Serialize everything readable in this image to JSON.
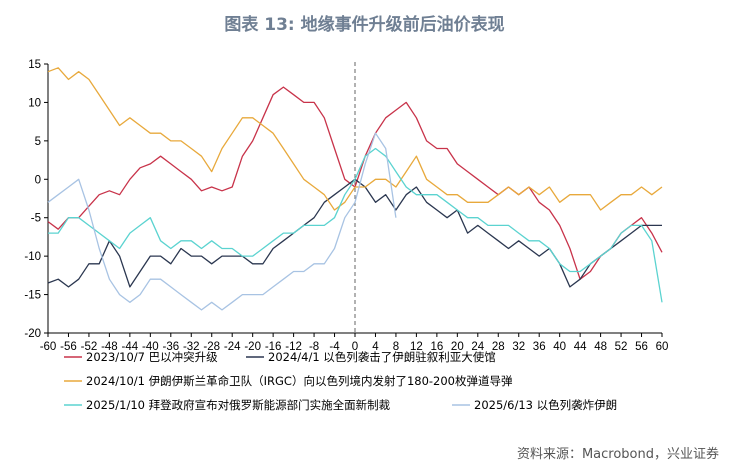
{
  "title": "图表 13: 地缘事件升级前后油价表现",
  "source": "资料来源：Macrobond，兴业证券",
  "chart_data": {
    "type": "line",
    "xlim": [
      -60,
      60
    ],
    "ylim": [
      -20,
      15
    ],
    "x_ticks": [
      -60,
      -56,
      -52,
      -48,
      -44,
      -40,
      -36,
      -32,
      -28,
      -24,
      -20,
      -16,
      -12,
      -8,
      -4,
      0,
      4,
      8,
      12,
      16,
      20,
      24,
      28,
      32,
      36,
      40,
      44,
      48,
      52,
      56,
      60
    ],
    "y_ticks": [
      15,
      10,
      5,
      0,
      -5,
      -10,
      -15,
      -20
    ],
    "event_line_x": 0,
    "series": [
      {
        "name": "2023/10/7 巴以冲突升级",
        "color": "#c8334a",
        "points": [
          [
            -60,
            -5.5
          ],
          [
            -58,
            -6.5
          ],
          [
            -56,
            -5
          ],
          [
            -54,
            -5
          ],
          [
            -52,
            -3.5
          ],
          [
            -50,
            -2
          ],
          [
            -48,
            -1.5
          ],
          [
            -46,
            -2
          ],
          [
            -44,
            0
          ],
          [
            -42,
            1.5
          ],
          [
            -40,
            2
          ],
          [
            -38,
            3
          ],
          [
            -36,
            2
          ],
          [
            -34,
            1
          ],
          [
            -32,
            0
          ],
          [
            -30,
            -1.5
          ],
          [
            -28,
            -1
          ],
          [
            -26,
            -1.5
          ],
          [
            -24,
            -1
          ],
          [
            -22,
            3
          ],
          [
            -20,
            5
          ],
          [
            -18,
            8
          ],
          [
            -16,
            11
          ],
          [
            -14,
            12
          ],
          [
            -12,
            11
          ],
          [
            -10,
            10
          ],
          [
            -8,
            10
          ],
          [
            -6,
            8
          ],
          [
            -4,
            4
          ],
          [
            -2,
            0
          ],
          [
            0,
            -1
          ],
          [
            2,
            3
          ],
          [
            4,
            6
          ],
          [
            6,
            8
          ],
          [
            8,
            9
          ],
          [
            10,
            10
          ],
          [
            12,
            8
          ],
          [
            14,
            5
          ],
          [
            16,
            4
          ],
          [
            18,
            4
          ],
          [
            20,
            2
          ],
          [
            22,
            1
          ],
          [
            24,
            0
          ],
          [
            26,
            -1
          ],
          [
            28,
            -2
          ],
          [
            30,
            -1
          ],
          [
            32,
            -2
          ],
          [
            34,
            -1
          ],
          [
            36,
            -3
          ],
          [
            38,
            -4
          ],
          [
            40,
            -6
          ],
          [
            42,
            -9
          ],
          [
            44,
            -13
          ],
          [
            46,
            -12
          ],
          [
            48,
            -10
          ],
          [
            50,
            -9
          ],
          [
            52,
            -7
          ],
          [
            54,
            -6
          ],
          [
            56,
            -5
          ],
          [
            58,
            -7
          ],
          [
            60,
            -9.5
          ]
        ]
      },
      {
        "name": "2024/4/1 以色列袭击了伊朗驻叙利亚大使馆",
        "color": "#2b3750",
        "points": [
          [
            -60,
            -13.5
          ],
          [
            -58,
            -13
          ],
          [
            -56,
            -14
          ],
          [
            -54,
            -13
          ],
          [
            -52,
            -11
          ],
          [
            -50,
            -11
          ],
          [
            -48,
            -8
          ],
          [
            -46,
            -10
          ],
          [
            -44,
            -14
          ],
          [
            -42,
            -12
          ],
          [
            -40,
            -10
          ],
          [
            -38,
            -10
          ],
          [
            -36,
            -11
          ],
          [
            -34,
            -9
          ],
          [
            -32,
            -10
          ],
          [
            -30,
            -10
          ],
          [
            -28,
            -11
          ],
          [
            -26,
            -10
          ],
          [
            -24,
            -10
          ],
          [
            -22,
            -10
          ],
          [
            -20,
            -11
          ],
          [
            -18,
            -11
          ],
          [
            -16,
            -9
          ],
          [
            -14,
            -8
          ],
          [
            -12,
            -7
          ],
          [
            -10,
            -6
          ],
          [
            -8,
            -5
          ],
          [
            -6,
            -3
          ],
          [
            -4,
            -2
          ],
          [
            -2,
            -1
          ],
          [
            0,
            0
          ],
          [
            2,
            -1
          ],
          [
            4,
            -3
          ],
          [
            6,
            -2
          ],
          [
            8,
            -4
          ],
          [
            10,
            -2
          ],
          [
            12,
            -1
          ],
          [
            14,
            -3
          ],
          [
            16,
            -4
          ],
          [
            18,
            -5
          ],
          [
            20,
            -4
          ],
          [
            22,
            -7
          ],
          [
            24,
            -6
          ],
          [
            26,
            -7
          ],
          [
            28,
            -8
          ],
          [
            30,
            -9
          ],
          [
            32,
            -8
          ],
          [
            34,
            -9
          ],
          [
            36,
            -10
          ],
          [
            38,
            -9
          ],
          [
            40,
            -11
          ],
          [
            42,
            -14
          ],
          [
            44,
            -13
          ],
          [
            46,
            -11
          ],
          [
            48,
            -10
          ],
          [
            50,
            -9
          ],
          [
            52,
            -8
          ],
          [
            54,
            -7
          ],
          [
            56,
            -6
          ],
          [
            58,
            -6
          ],
          [
            60,
            -6
          ]
        ]
      },
      {
        "name": "2024/10/1 伊朗伊斯兰革命卫队（IRGC）向以色列境内发射了180-200枚弹道导弹",
        "color": "#e8a93c",
        "points": [
          [
            -60,
            14
          ],
          [
            -58,
            14.5
          ],
          [
            -56,
            13
          ],
          [
            -54,
            14
          ],
          [
            -52,
            13
          ],
          [
            -50,
            11
          ],
          [
            -48,
            9
          ],
          [
            -46,
            7
          ],
          [
            -44,
            8
          ],
          [
            -42,
            7
          ],
          [
            -40,
            6
          ],
          [
            -38,
            6
          ],
          [
            -36,
            5
          ],
          [
            -34,
            5
          ],
          [
            -32,
            4
          ],
          [
            -30,
            3
          ],
          [
            -28,
            1
          ],
          [
            -26,
            4
          ],
          [
            -24,
            6
          ],
          [
            -22,
            8
          ],
          [
            -20,
            8
          ],
          [
            -18,
            7
          ],
          [
            -16,
            6
          ],
          [
            -14,
            4
          ],
          [
            -12,
            2
          ],
          [
            -10,
            0
          ],
          [
            -8,
            -1
          ],
          [
            -6,
            -2
          ],
          [
            -4,
            -4
          ],
          [
            -2,
            -3
          ],
          [
            0,
            -1
          ],
          [
            2,
            -1
          ],
          [
            4,
            0
          ],
          [
            6,
            0
          ],
          [
            8,
            -1
          ],
          [
            10,
            1
          ],
          [
            12,
            3
          ],
          [
            14,
            0
          ],
          [
            16,
            -1
          ],
          [
            18,
            -2
          ],
          [
            20,
            -2
          ],
          [
            22,
            -3
          ],
          [
            24,
            -3
          ],
          [
            26,
            -3
          ],
          [
            28,
            -2
          ],
          [
            30,
            -1
          ],
          [
            32,
            -2
          ],
          [
            34,
            -1
          ],
          [
            36,
            -2
          ],
          [
            38,
            -1
          ],
          [
            40,
            -3
          ],
          [
            42,
            -2
          ],
          [
            44,
            -2
          ],
          [
            46,
            -2
          ],
          [
            48,
            -4
          ],
          [
            50,
            -3
          ],
          [
            52,
            -2
          ],
          [
            54,
            -2
          ],
          [
            56,
            -1
          ],
          [
            58,
            -2
          ],
          [
            60,
            -1
          ]
        ]
      },
      {
        "name": "2025/1/10 拜登政府宣布对俄罗斯能源部门实施全面新制裁",
        "color": "#5bd3d0",
        "points": [
          [
            -60,
            -7
          ],
          [
            -58,
            -7
          ],
          [
            -56,
            -5
          ],
          [
            -54,
            -5
          ],
          [
            -52,
            -6
          ],
          [
            -50,
            -7
          ],
          [
            -48,
            -8
          ],
          [
            -46,
            -9
          ],
          [
            -44,
            -7
          ],
          [
            -42,
            -6
          ],
          [
            -40,
            -5
          ],
          [
            -38,
            -8
          ],
          [
            -36,
            -9
          ],
          [
            -34,
            -8
          ],
          [
            -32,
            -8
          ],
          [
            -30,
            -9
          ],
          [
            -28,
            -8
          ],
          [
            -26,
            -9
          ],
          [
            -24,
            -9
          ],
          [
            -22,
            -10
          ],
          [
            -20,
            -10
          ],
          [
            -18,
            -9
          ],
          [
            -16,
            -8
          ],
          [
            -14,
            -7
          ],
          [
            -12,
            -7
          ],
          [
            -10,
            -6
          ],
          [
            -8,
            -6
          ],
          [
            -6,
            -6
          ],
          [
            -4,
            -5
          ],
          [
            -2,
            -2
          ],
          [
            0,
            0
          ],
          [
            2,
            3
          ],
          [
            4,
            4
          ],
          [
            6,
            3
          ],
          [
            8,
            1
          ],
          [
            10,
            -1
          ],
          [
            12,
            -2
          ],
          [
            14,
            -2
          ],
          [
            16,
            -2
          ],
          [
            18,
            -3
          ],
          [
            20,
            -4
          ],
          [
            22,
            -5
          ],
          [
            24,
            -5
          ],
          [
            26,
            -6
          ],
          [
            28,
            -6
          ],
          [
            30,
            -6
          ],
          [
            32,
            -7
          ],
          [
            34,
            -8
          ],
          [
            36,
            -8
          ],
          [
            38,
            -9
          ],
          [
            40,
            -11
          ],
          [
            42,
            -12
          ],
          [
            44,
            -12
          ],
          [
            46,
            -11
          ],
          [
            48,
            -10
          ],
          [
            50,
            -9
          ],
          [
            52,
            -7
          ],
          [
            54,
            -6
          ],
          [
            56,
            -6
          ],
          [
            58,
            -8
          ],
          [
            60,
            -16
          ]
        ]
      },
      {
        "name": "2025/6/13 以色列袭炸伊朗",
        "color": "#a8c3e3",
        "points": [
          [
            -60,
            -3
          ],
          [
            -58,
            -2
          ],
          [
            -56,
            -1
          ],
          [
            -54,
            0
          ],
          [
            -52,
            -4
          ],
          [
            -50,
            -9
          ],
          [
            -48,
            -13
          ],
          [
            -46,
            -15
          ],
          [
            -44,
            -16
          ],
          [
            -42,
            -15
          ],
          [
            -40,
            -13
          ],
          [
            -38,
            -13
          ],
          [
            -36,
            -14
          ],
          [
            -34,
            -15
          ],
          [
            -32,
            -16
          ],
          [
            -30,
            -17
          ],
          [
            -28,
            -16
          ],
          [
            -26,
            -17
          ],
          [
            -24,
            -16
          ],
          [
            -22,
            -15
          ],
          [
            -20,
            -15
          ],
          [
            -18,
            -15
          ],
          [
            -16,
            -14
          ],
          [
            -14,
            -13
          ],
          [
            -12,
            -12
          ],
          [
            -10,
            -12
          ],
          [
            -8,
            -11
          ],
          [
            -6,
            -11
          ],
          [
            -4,
            -9
          ],
          [
            -2,
            -5
          ],
          [
            0,
            -3
          ],
          [
            2,
            2
          ],
          [
            4,
            6
          ],
          [
            6,
            4
          ],
          [
            8,
            -5
          ]
        ]
      }
    ]
  }
}
